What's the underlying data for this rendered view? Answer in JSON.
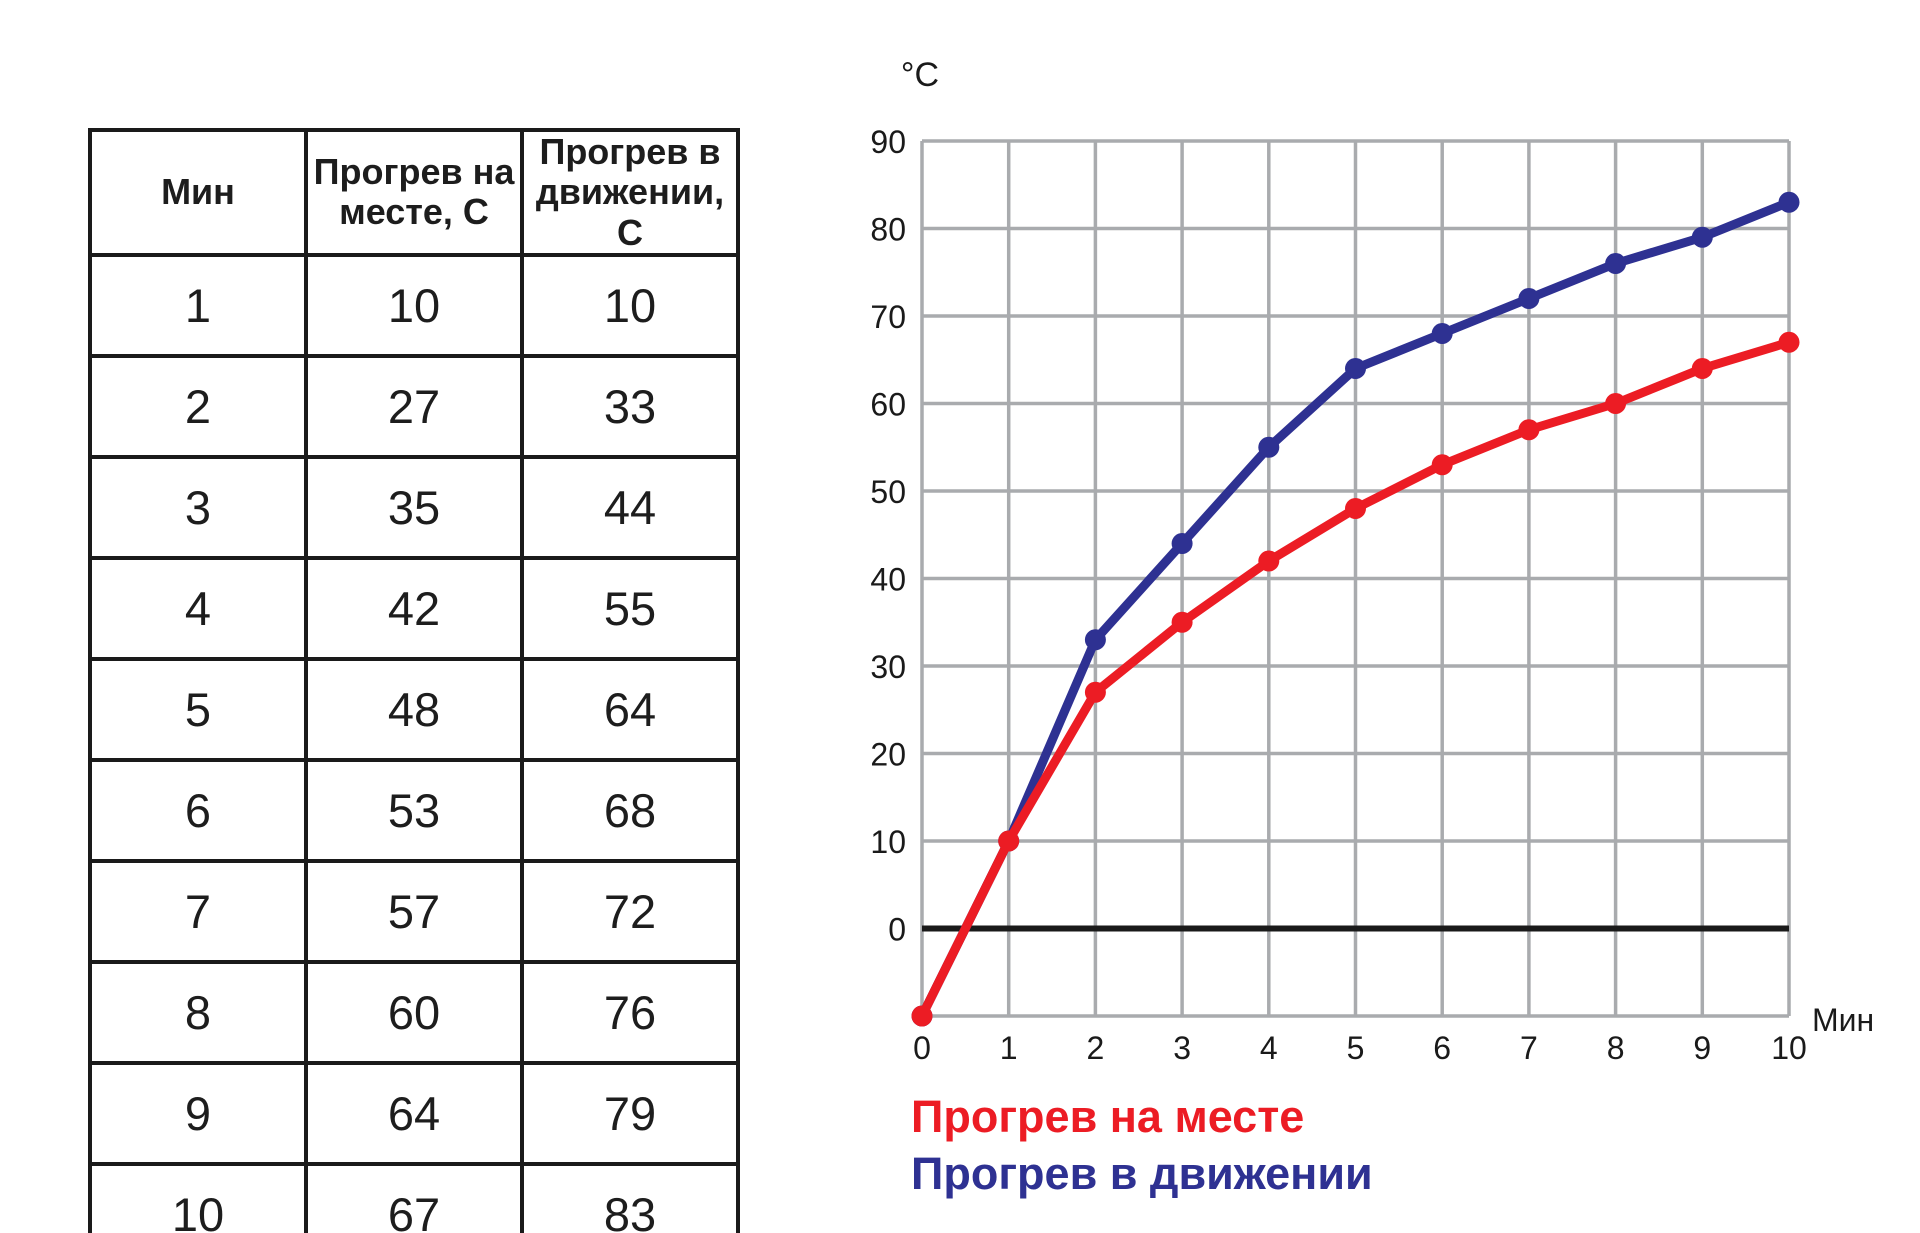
{
  "page": {
    "background": "#ffffff"
  },
  "table": {
    "headers": [
      "Мин",
      "Прогрев на месте, С",
      "Прогрев в движении, С"
    ],
    "rows": [
      [
        1,
        10,
        10
      ],
      [
        2,
        27,
        33
      ],
      [
        3,
        35,
        44
      ],
      [
        4,
        42,
        55
      ],
      [
        5,
        48,
        64
      ],
      [
        6,
        53,
        68
      ],
      [
        7,
        57,
        72
      ],
      [
        8,
        60,
        76
      ],
      [
        9,
        64,
        79
      ],
      [
        10,
        67,
        83
      ]
    ]
  },
  "chart_data": {
    "type": "line",
    "title": "",
    "ylabel": "°C",
    "xlabel": "Мин",
    "x": [
      0,
      1,
      2,
      3,
      4,
      5,
      6,
      7,
      8,
      9,
      10
    ],
    "x_ticks": [
      0,
      1,
      2,
      3,
      4,
      5,
      6,
      7,
      8,
      9,
      10
    ],
    "y_ticks": [
      0,
      10,
      20,
      30,
      40,
      50,
      60,
      70,
      80,
      90
    ],
    "xlim": [
      0,
      10
    ],
    "ylim": [
      -10,
      90
    ],
    "x_grid_step": 1,
    "y_grid_step": 10,
    "grid": true,
    "grid_color": "#a9abae",
    "zero_line_color": "#1a1a1a",
    "legend_position": "bottom-left",
    "series": [
      {
        "name": "Прогрев на месте",
        "color": "#ec1c24",
        "values": [
          -10,
          10,
          27,
          35,
          42,
          48,
          53,
          57,
          60,
          64,
          67
        ]
      },
      {
        "name": "Прогрев в движении",
        "color": "#2e3192",
        "values": [
          -10,
          10,
          33,
          44,
          55,
          64,
          68,
          72,
          76,
          79,
          83
        ]
      }
    ]
  }
}
